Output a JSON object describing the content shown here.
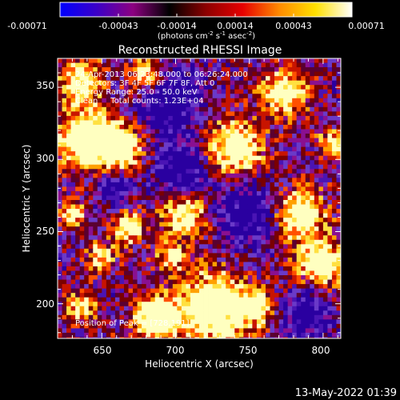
{
  "colorbar": {
    "ticks": [
      "-0.00071",
      "-0.00043",
      "-0.00014",
      "0.00014",
      "0.00043",
      "0.00071"
    ],
    "units_main": "(photons cm",
    "units_sup1": "-2",
    "units_mid1": " s",
    "units_sup2": "-1",
    "units_mid2": " asec",
    "units_sup3": "-2",
    "units_end": ")",
    "gradient_colors": [
      "#0000ff",
      "#3b00c8",
      "#8c0080",
      "#000000",
      "#8c0000",
      "#e60000",
      "#ff8a00",
      "#ffe000",
      "#ffffff"
    ]
  },
  "image": {
    "title": "Reconstructed RHESSI Image",
    "annotations": [
      "24-Apr-2013 06:23:48.000 to 06:26:24.000",
      "Detectors: 3F 4F 5F 6F 7F 8F, Att 0",
      "Energy Range: 25.0 - 50.0 keV",
      "Clean     Total counts: 1.23E+04"
    ],
    "peak_label": "Position of Peak = [728,191]",
    "xlabel": "Heliocentric X (arcsec)",
    "ylabel": "Heliocentric Y (arcsec)",
    "xticks": [
      "650",
      "700",
      "750",
      "800"
    ],
    "yticks": [
      "350",
      "300",
      "250",
      "200"
    ],
    "xrange": [
      620,
      812
    ],
    "yrange": [
      176,
      370
    ],
    "palette": [
      "#2a00a0",
      "#4a14b4",
      "#6a3ac8",
      "#8a1090",
      "#5a0030",
      "#7a0000",
      "#c81400",
      "#ff5000",
      "#ffa000",
      "#ffe040",
      "#ffffc0"
    ]
  },
  "footer": {
    "timestamp": "13-May-2022 01:39"
  }
}
